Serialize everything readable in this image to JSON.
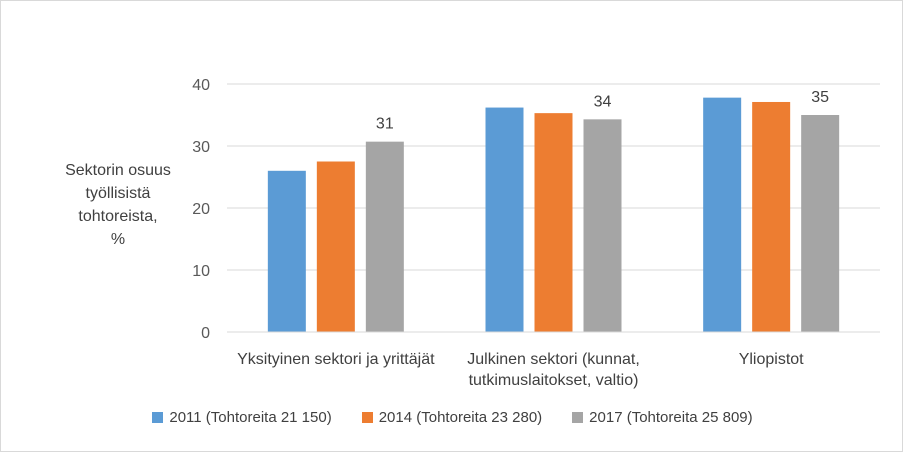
{
  "chart_data": {
    "type": "bar",
    "categories": [
      "Yksityinen sektori ja yrittäjät",
      "Julkinen sektori (kunnat, tutkimuslaitokset, valtio)",
      "Yliopistot"
    ],
    "category_label_lines": [
      [
        "Yksityinen sektori ja yrittäjät"
      ],
      [
        "Julkinen sektori (kunnat,",
        "tutkimuslaitokset, valtio)"
      ],
      [
        "Yliopistot"
      ]
    ],
    "series": [
      {
        "name": "2011 (Tohtoreita 21 150)",
        "values": [
          26,
          36.2,
          37.8
        ],
        "color": "#5b9bd5"
      },
      {
        "name": "2014 (Tohtoreita 23 280)",
        "values": [
          27.5,
          35.3,
          37.1
        ],
        "color": "#ed7d31"
      },
      {
        "name": "2017 (Tohtoreita 25 809)",
        "values": [
          30.7,
          34.3,
          35
        ],
        "color": "#a5a5a5",
        "data_labels": [
          "31",
          "34",
          "35"
        ]
      }
    ],
    "ylabel": "Sektorin osuus\ntyöllisistä\ntohtoreista,\n%",
    "ylim": [
      0,
      40
    ],
    "yticks": [
      "0",
      "10",
      "20",
      "30",
      "40"
    ],
    "grid": true,
    "legend_position": "bottom"
  }
}
